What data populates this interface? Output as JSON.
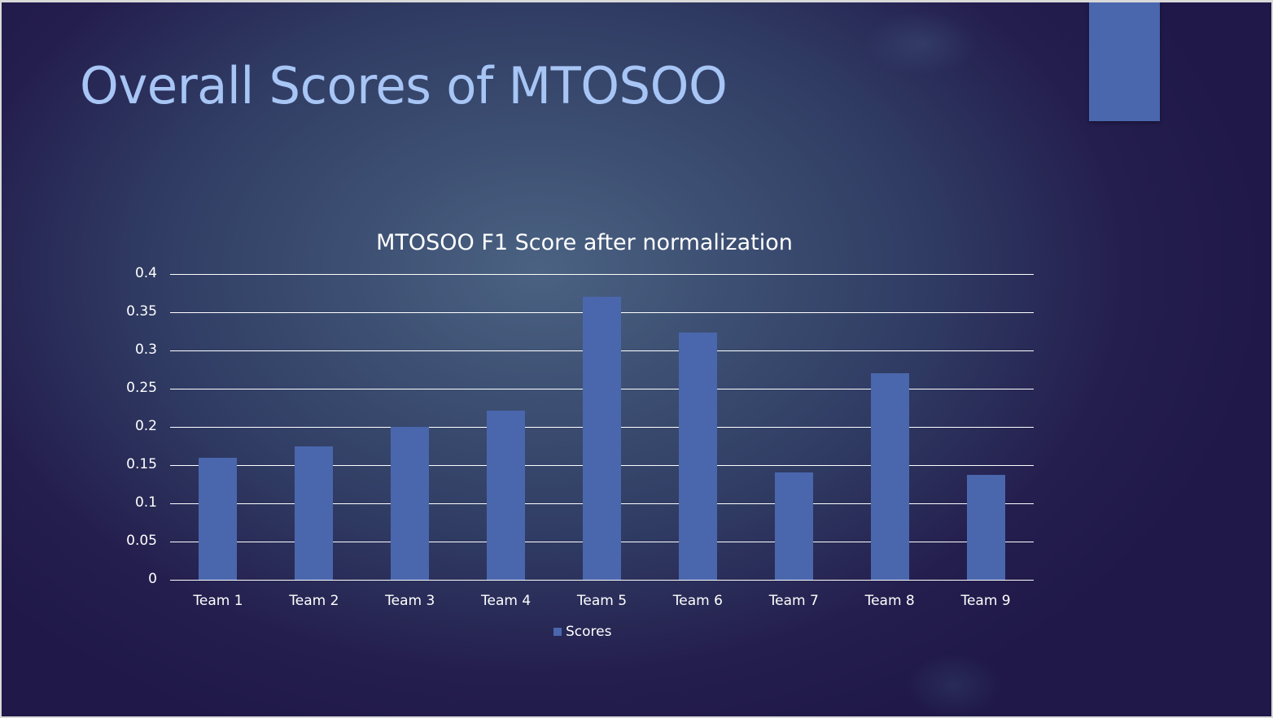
{
  "slide": {
    "title": "Overall Scores of MTOSOO",
    "accent_color": "#4a67ad",
    "title_color": "#a7c5f5"
  },
  "chart_data": {
    "type": "bar",
    "title": "MTOSOO F1 Score after normalization",
    "categories": [
      "Team 1",
      "Team 2",
      "Team 3",
      "Team 4",
      "Team 5",
      "Team 6",
      "Team 7",
      "Team 8",
      "Team 9"
    ],
    "series": [
      {
        "name": "Scores",
        "color": "#4a67ad",
        "values": [
          0.16,
          0.174,
          0.2,
          0.221,
          0.37,
          0.323,
          0.14,
          0.27,
          0.137
        ]
      }
    ],
    "xlabel": "",
    "ylabel": "",
    "ylim": [
      0,
      0.4
    ],
    "yticks": [
      "0",
      "0.05",
      "0.1",
      "0.15",
      "0.2",
      "0.25",
      "0.3",
      "0.35",
      "0.4"
    ],
    "grid": true,
    "legend_position": "bottom"
  }
}
